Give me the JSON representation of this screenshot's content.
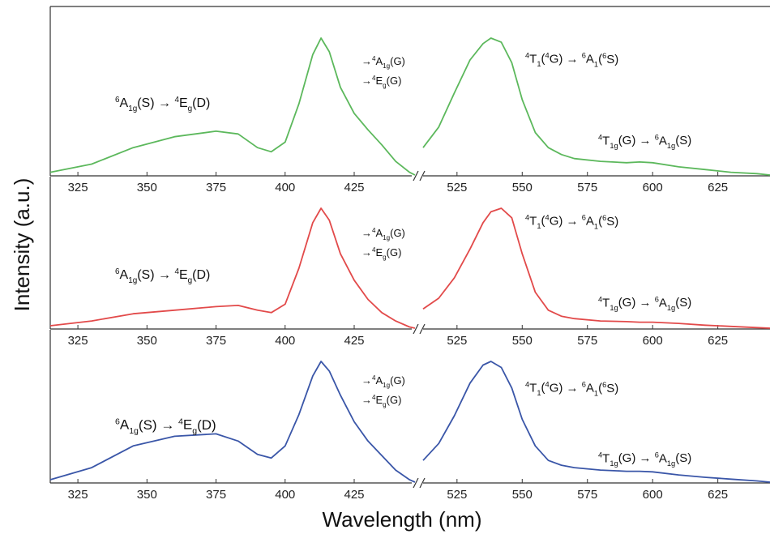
{
  "chart_data": {
    "type": "line",
    "xlabel": "Wavelength (nm)",
    "ylabel": "Intensity (a.u.)",
    "x_ticks": [
      325,
      350,
      375,
      400,
      425,
      525,
      550,
      575,
      600,
      625
    ],
    "x_break": "//",
    "x_segments": [
      {
        "xlim": [
          315,
          447
        ]
      },
      {
        "xlim": [
          512,
          645
        ]
      }
    ],
    "panels": [
      {
        "color": "#5cb85c",
        "series": [
          {
            "x": [
              315,
              330,
              345,
              360,
              375,
              383,
              390,
              395,
              400,
              405,
              410,
              413,
              416,
              420,
              425,
              430,
              435,
              440,
              445,
              447
            ],
            "y": [
              0.02,
              0.08,
              0.2,
              0.28,
              0.32,
              0.3,
              0.2,
              0.17,
              0.24,
              0.52,
              0.88,
              1.0,
              0.9,
              0.64,
              0.45,
              0.33,
              0.22,
              0.1,
              0.02,
              0.0
            ]
          },
          {
            "x": [
              512,
              518,
              524,
              530,
              535,
              538,
              542,
              546,
              550,
              555,
              560,
              565,
              570,
              580,
              590,
              595,
              600,
              610,
              620,
              630,
              640,
              645
            ],
            "y": [
              0.2,
              0.35,
              0.6,
              0.84,
              0.96,
              1.0,
              0.97,
              0.82,
              0.55,
              0.31,
              0.2,
              0.15,
              0.12,
              0.1,
              0.09,
              0.095,
              0.09,
              0.06,
              0.04,
              0.02,
              0.01,
              0.0
            ]
          }
        ],
        "annotations": {
          "a1": {
            "base": "A",
            "pre": "6",
            "sub": "1g",
            "text": "(S) → "
          },
          "a1b": {
            "base": "E",
            "pre": "4",
            "sub": "g",
            "text": "(D)"
          },
          "a2": {
            "base": "A",
            "pre": "4",
            "sub": "1g",
            "text": "(G)"
          },
          "a3": {
            "base": "E",
            "pre": "4",
            "sub": "g",
            "text": "(G)"
          },
          "a4": "T₁(G)→A₁(S)",
          "a5": "T1g(G)→A1g(S)"
        }
      },
      {
        "color": "#e24a4a",
        "series": [
          {
            "x": [
              315,
              330,
              345,
              360,
              375,
              383,
              390,
              395,
              400,
              405,
              410,
              413,
              416,
              420,
              425,
              430,
              435,
              440,
              445,
              447
            ],
            "y": [
              0.02,
              0.06,
              0.12,
              0.15,
              0.18,
              0.19,
              0.15,
              0.13,
              0.2,
              0.5,
              0.88,
              1.0,
              0.9,
              0.62,
              0.4,
              0.24,
              0.13,
              0.06,
              0.01,
              0.0
            ]
          },
          {
            "x": [
              512,
              518,
              524,
              530,
              535,
              538,
              542,
              546,
              550,
              555,
              560,
              565,
              570,
              580,
              590,
              595,
              600,
              610,
              620,
              630,
              640,
              645
            ],
            "y": [
              0.16,
              0.25,
              0.42,
              0.66,
              0.88,
              0.97,
              1.0,
              0.92,
              0.62,
              0.3,
              0.15,
              0.1,
              0.08,
              0.06,
              0.055,
              0.05,
              0.05,
              0.04,
              0.025,
              0.015,
              0.005,
              0.0
            ]
          }
        ]
      },
      {
        "color": "#3a56a8",
        "series": [
          {
            "x": [
              315,
              330,
              345,
              360,
              375,
              383,
              390,
              395,
              400,
              405,
              410,
              413,
              416,
              420,
              425,
              430,
              435,
              440,
              445,
              447
            ],
            "y": [
              0.02,
              0.12,
              0.3,
              0.38,
              0.4,
              0.34,
              0.23,
              0.2,
              0.3,
              0.56,
              0.88,
              1.0,
              0.92,
              0.72,
              0.5,
              0.34,
              0.22,
              0.1,
              0.02,
              0.0
            ]
          },
          {
            "x": [
              512,
              518,
              524,
              530,
              535,
              538,
              542,
              546,
              550,
              555,
              560,
              565,
              570,
              580,
              590,
              595,
              600,
              610,
              620,
              630,
              640,
              645
            ],
            "y": [
              0.18,
              0.32,
              0.55,
              0.82,
              0.97,
              1.0,
              0.95,
              0.78,
              0.52,
              0.3,
              0.18,
              0.14,
              0.12,
              0.1,
              0.09,
              0.09,
              0.085,
              0.06,
              0.04,
              0.025,
              0.01,
              0.0
            ]
          }
        ]
      }
    ]
  },
  "labels": {
    "ground_1": "6",
    "A1g_sub": "1g",
    "S": "(S)",
    "arrow": "→",
    "E_sup": "4",
    "E": "E",
    "Eg_sub": "g",
    "D": "(D)",
    "A": "A",
    "G": "(G)",
    "T": "T",
    "T1_sub": "1",
    "T1g_sub": "1g",
    "G_sup": "4",
    "G_mid": "G)",
    "S6": "6",
    "S_end": "S)",
    "paren": "(",
    "A1_sub": "1"
  }
}
